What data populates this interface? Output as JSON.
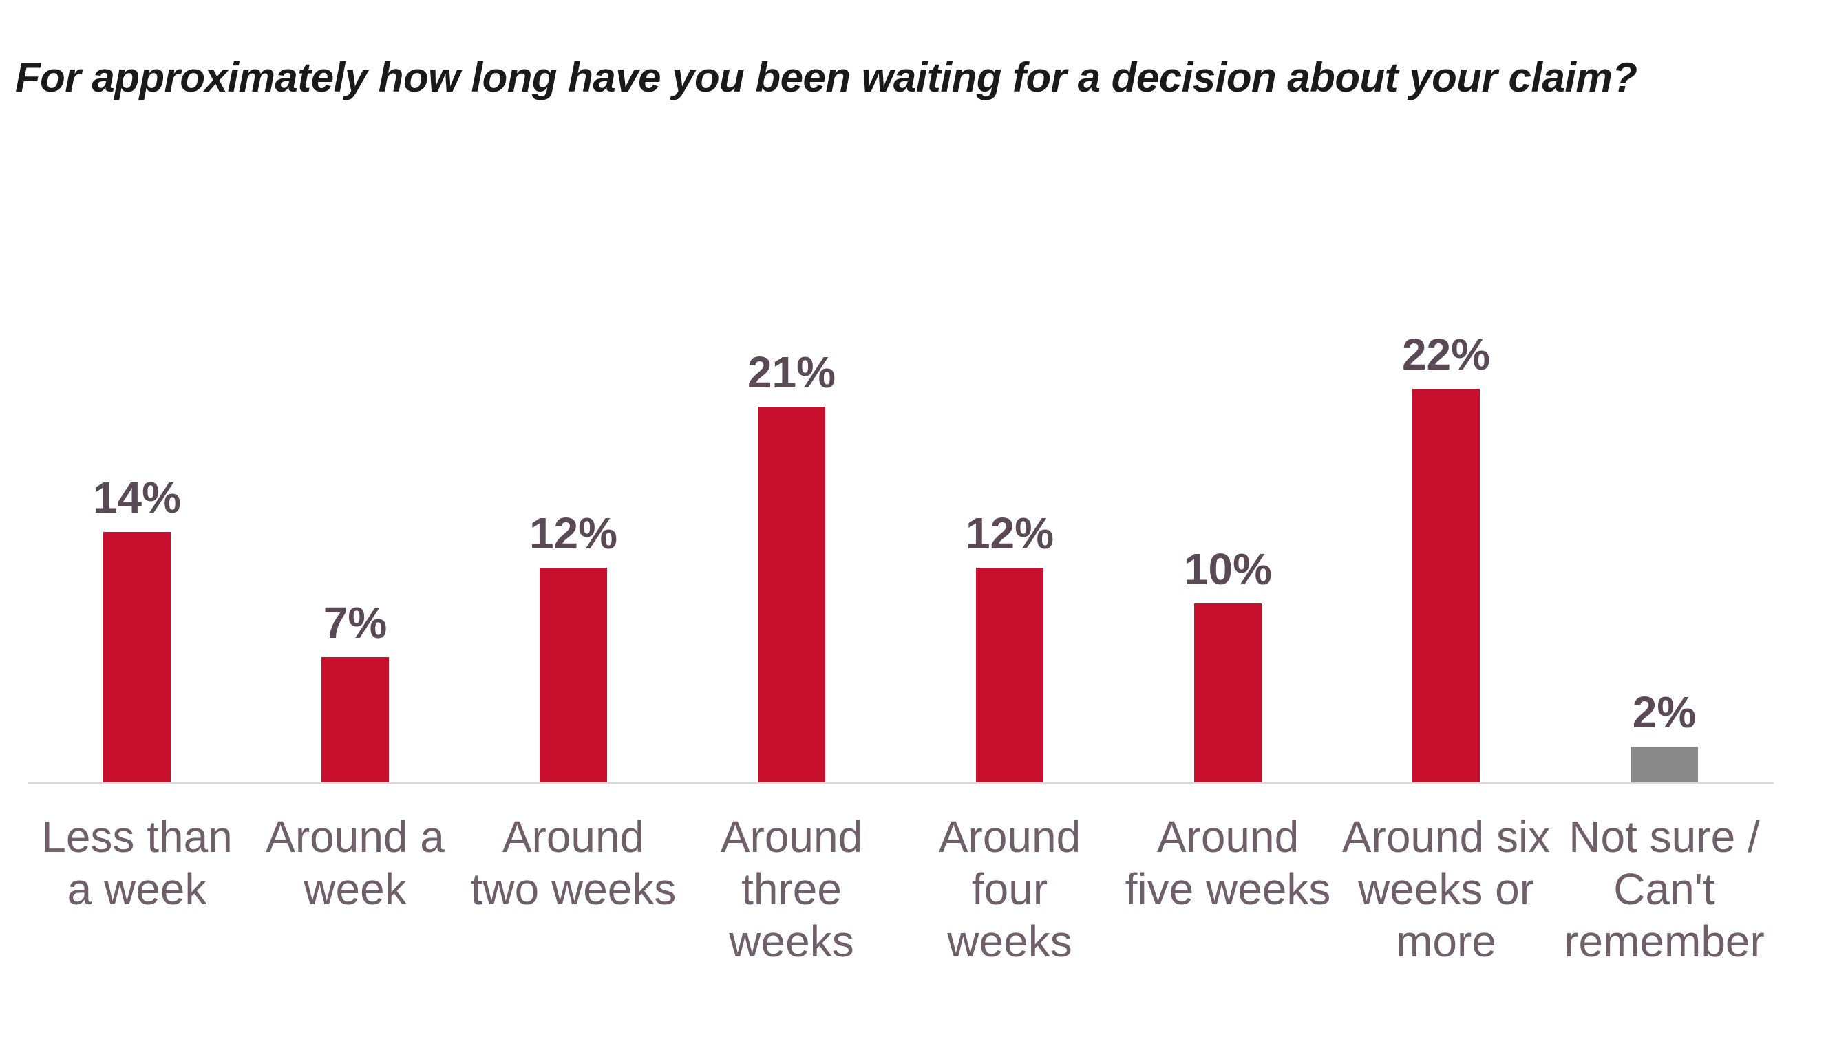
{
  "chart_data": {
    "type": "bar",
    "title": "For approximately how long have you been waiting for a decision about your claim?",
    "categories": [
      [
        "Less than",
        "a week"
      ],
      [
        "Around a",
        "week"
      ],
      [
        "Around",
        "two weeks"
      ],
      [
        "Around",
        "three",
        "weeks"
      ],
      [
        "Around",
        "four",
        "weeks"
      ],
      [
        "Around",
        "five weeks"
      ],
      [
        "Around six",
        "weeks or",
        "more"
      ],
      [
        "Not sure /",
        "Can't",
        "remember"
      ]
    ],
    "values": [
      14,
      7,
      12,
      21,
      12,
      10,
      22,
      2
    ],
    "value_labels": [
      "14%",
      "7%",
      "12%",
      "21%",
      "12%",
      "10%",
      "22%",
      "2%"
    ],
    "bar_colors": [
      "#c8102e",
      "#c8102e",
      "#c8102e",
      "#c8102e",
      "#c8102e",
      "#c8102e",
      "#c8102e",
      "#888888"
    ],
    "ylim": [
      0,
      22
    ],
    "grid": false,
    "legend": "none",
    "baseline_color": "#d9d9d9"
  }
}
